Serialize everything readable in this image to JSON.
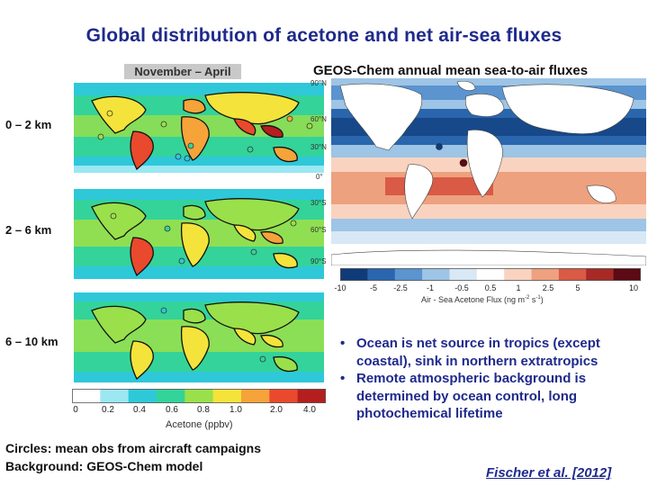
{
  "title": "Global distribution of acetone and net air-sea fluxes",
  "left_panel": {
    "header": "November – April",
    "altitudes": [
      "0 – 2 km",
      "2 – 6 km",
      "6 – 10 km"
    ],
    "colorbar": {
      "ticks": [
        "0",
        "0.2",
        "0.4",
        "0.6",
        "0.8",
        "1.0",
        "2.0",
        "4.0"
      ],
      "unit": "Acetone (ppbv)",
      "colors": [
        "#ffffff",
        "#9be7f2",
        "#2ec8d9",
        "#34d39a",
        "#9ae04a",
        "#f4e33a",
        "#f6a33a",
        "#e9492c",
        "#b51e1e"
      ]
    },
    "notes": [
      "Circles: mean obs from aircraft campaigns",
      "Background: GEOS-Chem model"
    ]
  },
  "right_panel": {
    "header": "GEOS-Chem annual mean sea-to-air fluxes",
    "latitudes": [
      "90°N",
      "60°N",
      "30°N",
      "0°",
      "30°S",
      "60°S",
      "90°S"
    ],
    "colorbar": {
      "ticks": [
        "-10",
        "-5",
        "-2.5",
        "-1",
        "-0.5",
        "0.5",
        "1",
        "2.5",
        "5",
        "10"
      ],
      "unit_prefix": "Air - Sea Acetone Flux (ng m",
      "unit_exp1": "-2",
      "unit_mid": " s",
      "unit_exp2": "-1",
      "unit_suffix": ")",
      "colors": [
        "#0f3c79",
        "#2a66ad",
        "#5b94cf",
        "#9ec4e6",
        "#d8e8f5",
        "#ffffff",
        "#f9d3bf",
        "#eda17e",
        "#d95a45",
        "#a72a26",
        "#5c0a14"
      ]
    }
  },
  "bullets": [
    "Ocean is net source in tropics (except coastal), sink in northern extratropics",
    "Remote atmospheric background is determined by ocean control, long photochemical lifetime"
  ],
  "citation": "Fischer et al. [2012]"
}
